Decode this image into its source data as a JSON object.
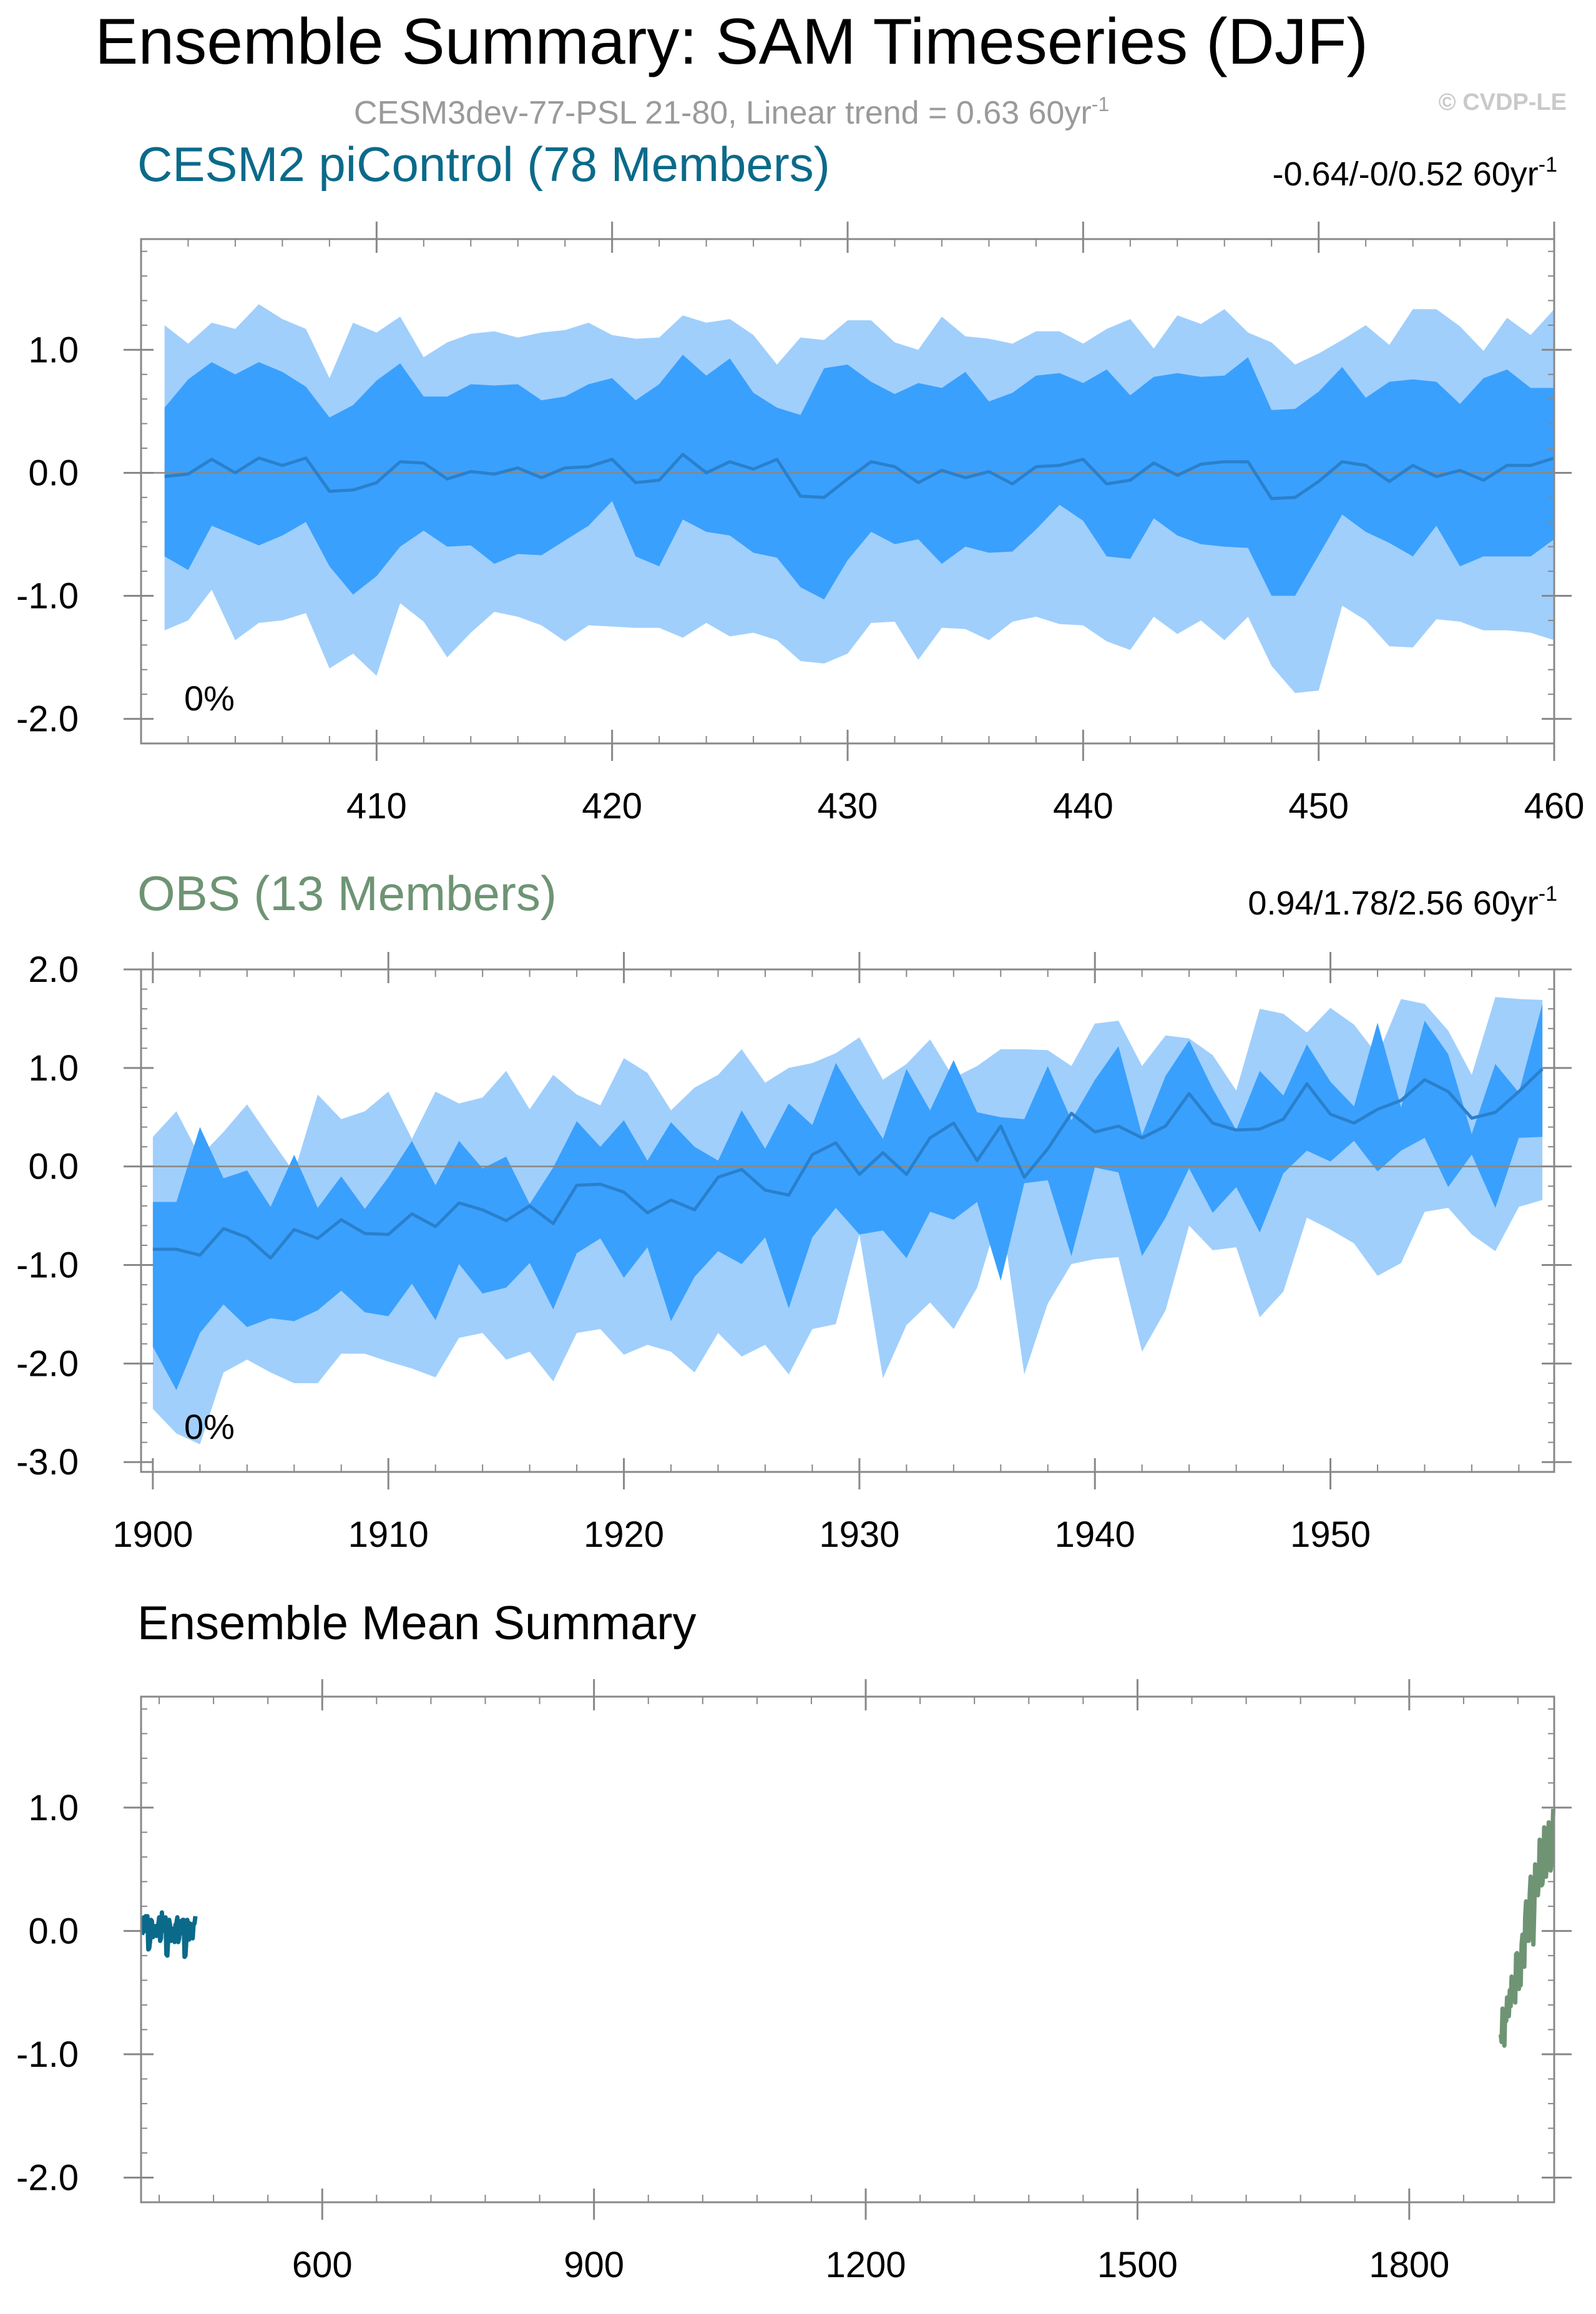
{
  "figure": {
    "title": "Ensemble Summary: SAM Timeseries (DJF)",
    "subtitle": "CESM3dev-77-PSL 21-80, Linear trend = 0.63 60yr",
    "subtitle_sup": "-1",
    "credit": "© CVDP-LE"
  },
  "colors": {
    "outer_band": "#a0cffc",
    "inner_band": "#3aa0fd",
    "mean_line": "#2a80cc",
    "cesm_title": "#0b6a8a",
    "obs_title": "#6e9474",
    "subtitle_gray": "#9a9a9a",
    "zero_line": "#888888"
  },
  "chart_data": [
    {
      "type": "area",
      "title": "CESM2 piControl (78 Members)",
      "trend_label": "-0.64/-0/0.52 60yr",
      "trend_sup": "-1",
      "percent_label": "0%",
      "x_start": 401,
      "xlim": [
        400,
        460
      ],
      "ylim": [
        -2.2,
        1.9
      ],
      "xticks": [
        410,
        420,
        430,
        440,
        450,
        460
      ],
      "yticks": [
        -2.0,
        -1.0,
        0.0,
        1.0
      ],
      "ytick_labels": [
        "-2.0",
        "-1.0",
        "0.0",
        "1.0"
      ],
      "series": [
        {
          "name": "p90",
          "values": [
            1.2,
            1.05,
            1.22,
            1.17,
            1.37,
            1.25,
            1.17,
            0.77,
            1.22,
            1.14,
            1.27,
            0.94,
            1.06,
            1.13,
            1.15,
            1.1,
            1.14,
            1.16,
            1.22,
            1.12,
            1.09,
            1.1,
            1.28,
            1.22,
            1.25,
            1.12,
            0.88,
            1.1,
            1.08,
            1.24,
            1.24,
            1.06,
            1.0,
            1.27,
            1.11,
            1.09,
            1.05,
            1.15,
            1.15,
            1.05,
            1.17,
            1.25,
            1.01,
            1.28,
            1.21,
            1.33,
            1.14,
            1.06,
            0.88,
            0.97,
            1.08,
            1.2,
            1.04,
            1.33,
            1.33,
            1.19,
            0.99,
            1.26,
            1.12,
            1.33
          ]
        },
        {
          "name": "p75",
          "values": [
            0.53,
            0.76,
            0.9,
            0.8,
            0.9,
            0.82,
            0.7,
            0.45,
            0.55,
            0.75,
            0.89,
            0.62,
            0.62,
            0.72,
            0.71,
            0.72,
            0.59,
            0.62,
            0.72,
            0.77,
            0.59,
            0.72,
            0.96,
            0.79,
            0.93,
            0.65,
            0.53,
            0.47,
            0.85,
            0.88,
            0.74,
            0.64,
            0.73,
            0.69,
            0.82,
            0.58,
            0.65,
            0.79,
            0.81,
            0.73,
            0.84,
            0.63,
            0.78,
            0.81,
            0.78,
            0.79,
            0.94,
            0.51,
            0.52,
            0.66,
            0.86,
            0.61,
            0.74,
            0.76,
            0.74,
            0.56,
            0.77,
            0.84,
            0.69,
            0.69
          ]
        },
        {
          "name": "mean",
          "values": [
            -0.03,
            -0.01,
            0.11,
            0.0,
            0.12,
            0.06,
            0.12,
            -0.15,
            -0.14,
            -0.08,
            0.09,
            0.08,
            -0.05,
            0.01,
            -0.01,
            0.04,
            -0.04,
            0.04,
            0.05,
            0.11,
            -0.08,
            -0.06,
            0.15,
            0.0,
            0.09,
            0.03,
            0.11,
            -0.19,
            -0.2,
            -0.05,
            0.09,
            0.05,
            -0.08,
            0.02,
            -0.04,
            0.01,
            -0.09,
            0.05,
            0.06,
            0.11,
            -0.09,
            -0.06,
            0.08,
            -0.02,
            0.07,
            0.09,
            0.09,
            -0.21,
            -0.2,
            -0.07,
            0.09,
            0.06,
            -0.07,
            0.06,
            -0.03,
            0.02,
            -0.06,
            0.06,
            0.06,
            0.12
          ]
        },
        {
          "name": "p25",
          "values": [
            -0.68,
            -0.79,
            -0.43,
            -0.51,
            -0.59,
            -0.51,
            -0.4,
            -0.76,
            -0.99,
            -0.84,
            -0.6,
            -0.47,
            -0.6,
            -0.59,
            -0.74,
            -0.66,
            -0.67,
            -0.55,
            -0.43,
            -0.23,
            -0.68,
            -0.76,
            -0.38,
            -0.48,
            -0.51,
            -0.65,
            -0.69,
            -0.93,
            -1.03,
            -0.71,
            -0.48,
            -0.58,
            -0.54,
            -0.74,
            -0.6,
            -0.65,
            -0.64,
            -0.46,
            -0.26,
            -0.39,
            -0.68,
            -0.7,
            -0.37,
            -0.51,
            -0.58,
            -0.6,
            -0.61,
            -1.0,
            -1.0,
            -0.67,
            -0.34,
            -0.48,
            -0.57,
            -0.68,
            -0.43,
            -0.76,
            -0.68,
            -0.68,
            -0.68,
            -0.54
          ]
        },
        {
          "name": "p10",
          "values": [
            -1.28,
            -1.2,
            -0.95,
            -1.36,
            -1.22,
            -1.2,
            -1.14,
            -1.59,
            -1.47,
            -1.65,
            -1.06,
            -1.21,
            -1.5,
            -1.3,
            -1.13,
            -1.17,
            -1.24,
            -1.37,
            -1.24,
            -1.25,
            -1.26,
            -1.26,
            -1.34,
            -1.22,
            -1.33,
            -1.3,
            -1.36,
            -1.53,
            -1.55,
            -1.47,
            -1.22,
            -1.21,
            -1.52,
            -1.26,
            -1.27,
            -1.36,
            -1.21,
            -1.17,
            -1.23,
            -1.24,
            -1.37,
            -1.44,
            -1.17,
            -1.31,
            -1.2,
            -1.36,
            -1.17,
            -1.57,
            -1.79,
            -1.77,
            -1.08,
            -1.2,
            -1.41,
            -1.42,
            -1.19,
            -1.21,
            -1.28,
            -1.28,
            -1.3,
            -1.36
          ]
        }
      ]
    },
    {
      "type": "area",
      "title": "OBS (13 Members)",
      "trend_label": "0.94/1.78/2.56 60yr",
      "trend_sup": "-1",
      "percent_label": "0%",
      "x_start": 1900,
      "xlim": [
        1899.5,
        1959.5
      ],
      "ylim": [
        -3.1,
        2.0
      ],
      "xticks": [
        1900,
        1910,
        1920,
        1930,
        1940,
        1950
      ],
      "yticks": [
        -3.0,
        -2.0,
        -1.0,
        0.0,
        1.0,
        2.0
      ],
      "ytick_labels": [
        "-3.0",
        "-2.0",
        "-1.0",
        "0.0",
        "1.0",
        "2.0"
      ],
      "series": [
        {
          "name": "p90",
          "values": [
            0.3,
            0.56,
            0.1,
            0.35,
            0.63,
            0.28,
            -0.06,
            0.73,
            0.48,
            0.56,
            0.76,
            0.28,
            0.76,
            0.64,
            0.7,
            0.97,
            0.58,
            0.93,
            0.73,
            0.62,
            1.1,
            0.95,
            0.57,
            0.8,
            0.93,
            1.19,
            0.85,
            1.0,
            1.05,
            1.15,
            1.31,
            0.88,
            1.04,
            1.29,
            0.9,
            1.02,
            1.19,
            1.19,
            1.18,
            1.02,
            1.45,
            1.48,
            1.02,
            1.33,
            1.3,
            1.13,
            0.77,
            1.6,
            1.55,
            1.36,
            1.61,
            1.44,
            1.13,
            1.7,
            1.65,
            1.38,
            0.93,
            1.72,
            1.7,
            1.69
          ]
        },
        {
          "name": "p75",
          "values": [
            -0.36,
            -0.36,
            0.4,
            -0.12,
            -0.04,
            -0.41,
            0.12,
            -0.42,
            -0.1,
            -0.43,
            -0.11,
            0.26,
            -0.19,
            0.26,
            -0.02,
            0.1,
            -0.38,
            -0.01,
            0.46,
            0.2,
            0.47,
            0.06,
            0.45,
            0.2,
            0.06,
            0.57,
            0.18,
            0.64,
            0.42,
            1.05,
            0.65,
            0.28,
            0.99,
            0.57,
            1.08,
            0.55,
            0.5,
            0.48,
            1.02,
            0.47,
            0.88,
            1.22,
            0.32,
            0.92,
            1.28,
            0.79,
            0.37,
            0.97,
            0.72,
            1.24,
            0.86,
            0.61,
            1.46,
            0.6,
            1.48,
            1.14,
            0.33,
            1.04,
            0.75,
            1.65
          ]
        },
        {
          "name": "mean",
          "values": [
            -0.84,
            -0.84,
            -0.9,
            -0.63,
            -0.72,
            -0.93,
            -0.64,
            -0.73,
            -0.54,
            -0.68,
            -0.69,
            -0.48,
            -0.61,
            -0.37,
            -0.44,
            -0.55,
            -0.4,
            -0.58,
            -0.19,
            -0.18,
            -0.26,
            -0.47,
            -0.34,
            -0.44,
            -0.11,
            -0.03,
            -0.24,
            -0.29,
            0.12,
            0.24,
            -0.08,
            0.14,
            -0.08,
            0.29,
            0.44,
            0.06,
            0.41,
            -0.11,
            0.18,
            0.54,
            0.35,
            0.41,
            0.29,
            0.41,
            0.74,
            0.44,
            0.37,
            0.38,
            0.48,
            0.84,
            0.53,
            0.44,
            0.58,
            0.67,
            0.88,
            0.76,
            0.49,
            0.55,
            0.76,
            0.99
          ]
        },
        {
          "name": "p25",
          "values": [
            -1.83,
            -2.27,
            -1.69,
            -1.4,
            -1.63,
            -1.54,
            -1.57,
            -1.46,
            -1.26,
            -1.48,
            -1.52,
            -1.19,
            -1.56,
            -0.99,
            -1.29,
            -1.23,
            -0.98,
            -1.45,
            -0.88,
            -0.73,
            -1.13,
            -0.82,
            -1.57,
            -1.12,
            -0.86,
            -0.99,
            -0.72,
            -1.44,
            -0.72,
            -0.42,
            -0.69,
            -0.65,
            -0.93,
            -0.46,
            -0.54,
            -0.36,
            -1.16,
            -0.17,
            -0.14,
            -0.91,
            -0.01,
            -0.06,
            -0.91,
            -0.52,
            -0.02,
            -0.47,
            -0.21,
            -0.67,
            -0.07,
            0.16,
            0.05,
            0.26,
            -0.05,
            0.16,
            0.29,
            -0.21,
            0.12,
            -0.42,
            0.29,
            0.3
          ]
        },
        {
          "name": "p10",
          "values": [
            -2.46,
            -2.71,
            -2.82,
            -2.09,
            -1.96,
            -2.09,
            -2.2,
            -2.2,
            -1.9,
            -1.9,
            -1.98,
            -2.05,
            -2.14,
            -1.74,
            -1.69,
            -1.96,
            -1.88,
            -2.18,
            -1.69,
            -1.65,
            -1.91,
            -1.81,
            -1.88,
            -2.09,
            -1.69,
            -1.93,
            -1.81,
            -2.11,
            -1.65,
            -1.6,
            -0.69,
            -2.15,
            -1.61,
            -1.38,
            -1.65,
            -1.23,
            -0.43,
            -2.11,
            -1.39,
            -0.99,
            -0.94,
            -0.92,
            -1.88,
            -1.46,
            -0.6,
            -0.85,
            -0.82,
            -1.53,
            -1.27,
            -0.52,
            -0.64,
            -0.78,
            -1.11,
            -0.98,
            -0.46,
            -0.42,
            -0.69,
            -0.86,
            -0.41,
            -0.34
          ]
        }
      ]
    },
    {
      "type": "line",
      "title": "Ensemble Mean Summary",
      "xlim": [
        400,
        1960
      ],
      "ylim": [
        -2.2,
        1.9
      ],
      "xticks": [
        600,
        900,
        1200,
        1500,
        1800
      ],
      "yticks": [
        -2.0,
        -1.0,
        0.0,
        1.0
      ],
      "ytick_labels": [
        "-2.0",
        "-1.0",
        "0.0",
        "1.0"
      ],
      "series": [
        {
          "name": "CESM2 piControl",
          "source_panel": 0
        },
        {
          "name": "OBS",
          "source_panel": 1
        }
      ]
    }
  ]
}
